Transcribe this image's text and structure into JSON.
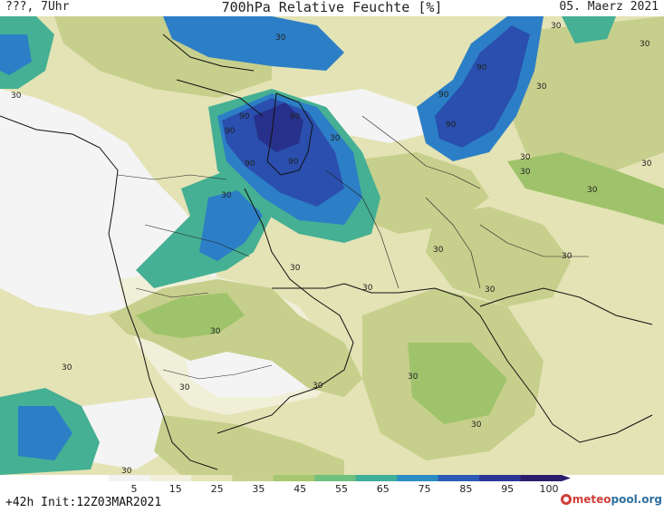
{
  "header": {
    "left": "???, 7Uhr",
    "center": "700hPa Relative Feuchte [%]",
    "right": "05. Maerz 2021"
  },
  "footer": {
    "left": "+42h Init:12Z03MAR2021",
    "logo_prefix": "meteo",
    "logo_suffix": "pool.org"
  },
  "legend": {
    "ticks": [
      "5",
      "15",
      "25",
      "35",
      "45",
      "55",
      "65",
      "75",
      "85",
      "95",
      "100"
    ],
    "colors": [
      "#f4f4f4",
      "#f2f0dc",
      "#e4e4b8",
      "#c9d08e",
      "#a7c770",
      "#6fc07e",
      "#3fae9a",
      "#2b8dc4",
      "#2b59b6",
      "#2a3796",
      "#2b1d6c"
    ]
  },
  "map": {
    "contour_labels": [
      "30",
      "30",
      "30",
      "30",
      "30",
      "30",
      "30",
      "30",
      "30",
      "30",
      "30",
      "30",
      "30",
      "30",
      "30",
      "30",
      "30",
      "30",
      "30",
      "30",
      "30",
      "30",
      "30",
      "90",
      "90",
      "90",
      "90",
      "90",
      "90",
      "90",
      "90"
    ],
    "colors": {
      "dry": "#f4f4f4",
      "very_light": "#f0efd8",
      "light": "#e3e3b5",
      "olive": "#c7cf8c",
      "green": "#9fc36a",
      "teal": "#45b093",
      "blue": "#2c7fc6",
      "dark_blue": "#2a4fae",
      "navy": "#27308a"
    }
  }
}
